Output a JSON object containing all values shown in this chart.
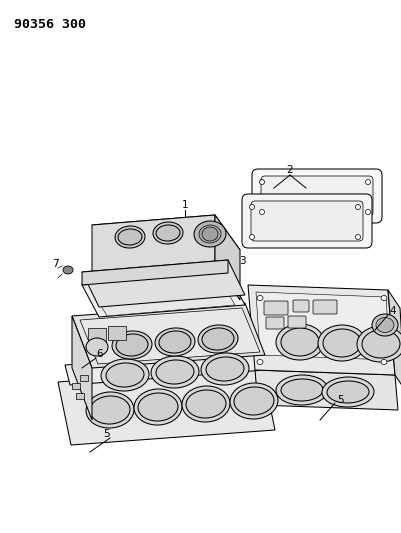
{
  "title": "90356 300",
  "bg": "#ffffff",
  "lc": "#000000",
  "fig_w": 4.01,
  "fig_h": 5.33,
  "dpi": 100,
  "title_fontsize": 9.5,
  "label_fontsize": 7.5
}
